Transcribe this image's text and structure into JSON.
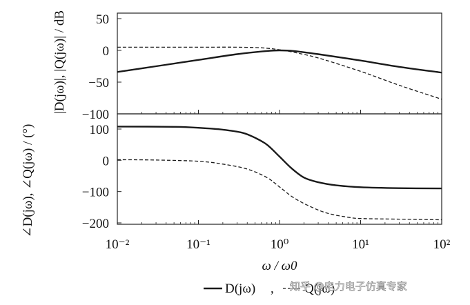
{
  "chart_data": [
    {
      "type": "line",
      "panel": "magnitude",
      "ylabel": "|D(jω)|, |Q(jω)| / dB",
      "xscale": "log",
      "xlim": [
        0.01,
        100
      ],
      "ylim": [
        -100,
        50
      ],
      "yticks": [
        "50",
        "0",
        "−50",
        "−100"
      ],
      "ytick_values": [
        50,
        0,
        -50,
        -100
      ],
      "series": [
        {
          "name": "D(jω)",
          "style": "solid",
          "x": [
            0.01,
            0.03,
            0.1,
            0.3,
            0.7,
            1,
            1.5,
            3,
            10,
            30,
            100
          ],
          "y": [
            -34,
            -25,
            -15,
            -6,
            -1,
            0,
            -1,
            -6,
            -16,
            -26,
            -35
          ]
        },
        {
          "name": "Q(jω)",
          "style": "dashed",
          "x": [
            0.01,
            0.1,
            0.3,
            0.6,
            1,
            1.5,
            3,
            10,
            30,
            100
          ],
          "y": [
            5,
            5,
            5,
            4,
            1,
            -3,
            -12,
            -33,
            -55,
            -77
          ]
        }
      ]
    },
    {
      "type": "line",
      "panel": "phase",
      "ylabel": "∠D(jω), ∠Q(jω) / (°)",
      "xlabel": "ω / ω0",
      "xscale": "log",
      "xlim": [
        0.01,
        100
      ],
      "ylim": [
        -200,
        120
      ],
      "yticks": [
        "100",
        "0",
        "−100",
        "−200"
      ],
      "ytick_values": [
        100,
        0,
        -100,
        -200
      ],
      "xticks": [
        "10⁻²",
        "10⁻¹",
        "10⁰",
        "10¹",
        "10²"
      ],
      "xtick_values": [
        0.01,
        0.1,
        1,
        10,
        100
      ],
      "series": [
        {
          "name": "D(jω)",
          "style": "solid",
          "x": [
            0.01,
            0.05,
            0.1,
            0.2,
            0.35,
            0.5,
            0.7,
            1,
            1.4,
            2,
            3,
            5,
            10,
            30,
            100
          ],
          "y": [
            108,
            107,
            104,
            98,
            88,
            72,
            50,
            12,
            -25,
            -55,
            -70,
            -80,
            -86,
            -89,
            -90
          ]
        },
        {
          "name": "Q(jω)",
          "style": "dashed",
          "x": [
            0.01,
            0.03,
            0.1,
            0.2,
            0.4,
            0.7,
            1,
            1.5,
            2.5,
            4,
            7,
            10,
            30,
            100
          ],
          "y": [
            2,
            1,
            -3,
            -12,
            -28,
            -55,
            -85,
            -120,
            -150,
            -170,
            -182,
            -186,
            -188,
            -190
          ]
        }
      ]
    }
  ],
  "legend": [
    {
      "label": "D(jω)",
      "style": "solid"
    },
    {
      "label": "Q(jω)",
      "style": "dashed"
    }
  ],
  "legend_separator": ",",
  "watermark": "知乎 @电力电子仿真专家",
  "colors": {
    "line": "#1a1a1a",
    "axis": "#222222"
  }
}
